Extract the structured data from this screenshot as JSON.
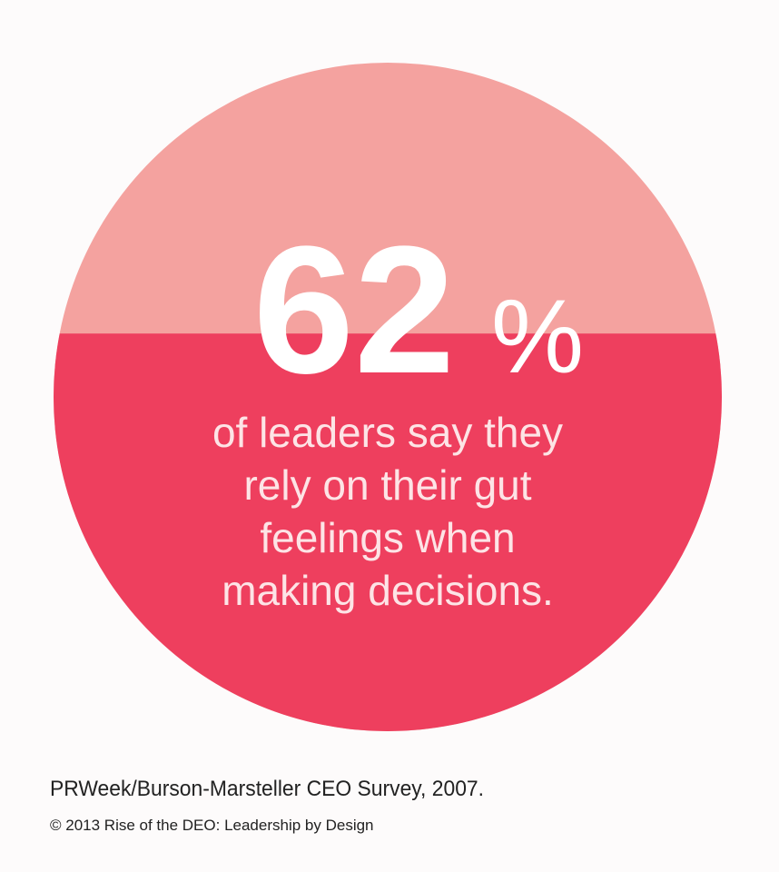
{
  "chart_data": {
    "type": "fill-circle",
    "value": 62,
    "unit": "%",
    "ylim": [
      0,
      100
    ],
    "description": [
      "of leaders say they",
      "rely on their gut",
      "feelings when",
      "making decisions."
    ],
    "color": "#ee3f5e",
    "empty_color": "#f4a29f"
  },
  "source": "PRWeek/Burson-Marsteller CEO Survey, 2007.",
  "copyright": "© 2013 Rise of the DEO: Leadership by Design"
}
